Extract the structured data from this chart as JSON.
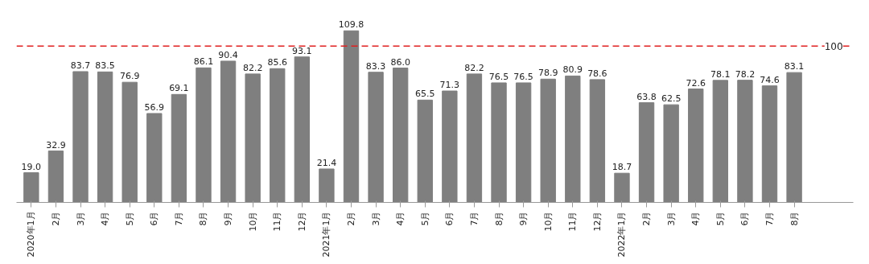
{
  "chart_data": {
    "type": "bar",
    "categories": [
      "2020年1月",
      "2月",
      "3月",
      "4月",
      "5月",
      "6月",
      "7月",
      "8月",
      "9月",
      "10月",
      "11月",
      "12月",
      "2021年1月",
      "2月",
      "3月",
      "4月",
      "5月",
      "6月",
      "7月",
      "8月",
      "9月",
      "10月",
      "11月",
      "12月",
      "2022年1月",
      "2月",
      "3月",
      "4月",
      "5月",
      "6月",
      "7月",
      "8月"
    ],
    "series": [
      {
        "color": "#7f7f7f",
        "values": [
          19.0,
          32.9,
          83.7,
          83.5,
          76.9,
          56.9,
          69.1,
          86.1,
          90.4,
          82.2,
          85.6,
          93.1,
          21.4,
          109.8,
          83.3,
          86.0,
          65.5,
          71.3,
          82.2,
          76.5,
          76.5,
          78.9,
          80.9,
          78.6,
          18.7,
          63.8,
          62.5,
          72.6,
          78.1,
          78.2,
          74.6,
          83.1
        ],
        "value_labels": [
          "19.0",
          "32.9",
          "83.7",
          "83.5",
          "76.9",
          "56.9",
          "69.1",
          "86.1",
          "90.4",
          "82.2",
          "85.6",
          "93.1",
          "21.4",
          "109.8",
          "83.3",
          "86.0",
          "65.5",
          "71.3",
          "82.2",
          "76.5",
          "76.5",
          "78.9",
          "80.9",
          "78.6",
          "18.7",
          "63.8",
          "62.5",
          "72.6",
          "78.1",
          "78.2",
          "74.6",
          "83.1"
        ]
      }
    ],
    "ref_lines": [
      {
        "axis": "y",
        "value": 100,
        "label": "100",
        "color": "#e02020",
        "line_style": "dashed"
      }
    ],
    "tick_labels": "x",
    "grid": false
  }
}
